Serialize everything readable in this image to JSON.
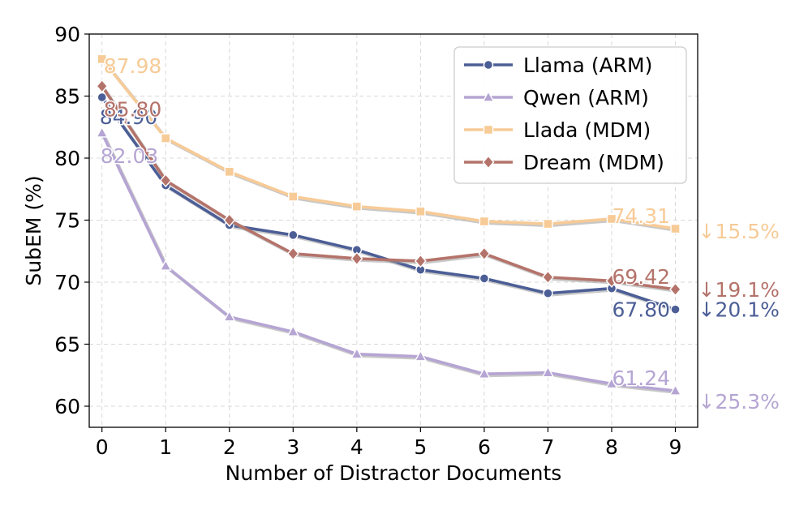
{
  "chart_data": {
    "type": "line",
    "xlabel": "Number of Distractor Documents",
    "ylabel": "SubEM (%)",
    "x": [
      0,
      1,
      2,
      3,
      4,
      5,
      6,
      7,
      8,
      9
    ],
    "xlim": [
      -0.2,
      9.35
    ],
    "ylim": [
      58.3,
      90
    ],
    "yticks": [
      60,
      65,
      70,
      75,
      80,
      85,
      90
    ],
    "grid": true,
    "legend_position": "top-right",
    "series": [
      {
        "name": "Llama (ARM)",
        "color": "#4c5e96",
        "marker": "circle",
        "values": [
          84.9,
          77.8,
          74.6,
          73.8,
          72.6,
          71.0,
          70.3,
          69.1,
          69.5,
          67.8
        ],
        "start_label": "84.90",
        "end_label": "67.80",
        "drop_label": "↓20.1%"
      },
      {
        "name": "Qwen (ARM)",
        "color": "#b5a5d3",
        "marker": "triangle",
        "values": [
          82.03,
          71.3,
          67.2,
          66.0,
          64.2,
          64.0,
          62.6,
          62.7,
          61.8,
          61.24
        ],
        "start_label": "82.03",
        "end_label": "61.24",
        "drop_label": "↓25.3%"
      },
      {
        "name": "Llada (MDM)",
        "color": "#f7cb97",
        "marker": "square",
        "values": [
          87.98,
          81.6,
          78.9,
          76.9,
          76.1,
          75.7,
          74.9,
          74.7,
          75.1,
          74.31
        ],
        "start_label": "87.98",
        "end_label": "74.31",
        "drop_label": "↓15.5%"
      },
      {
        "name": "Dream (MDM)",
        "color": "#b4736a",
        "marker": "diamond",
        "values": [
          85.8,
          78.2,
          75.0,
          72.3,
          71.9,
          71.7,
          72.3,
          70.4,
          70.1,
          69.42
        ],
        "start_label": "85.80",
        "end_label": "69.42",
        "drop_label": "↓19.1%"
      }
    ]
  }
}
